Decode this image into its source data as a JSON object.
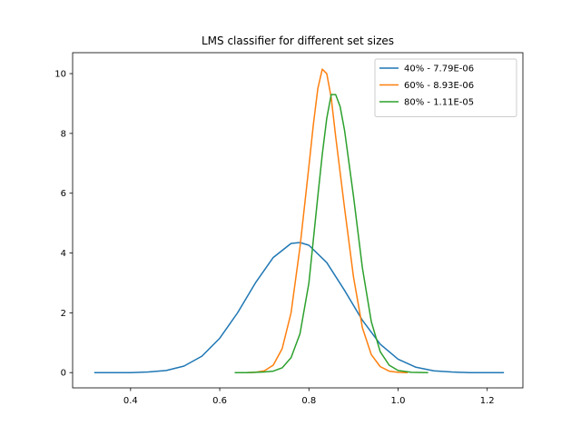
{
  "chart_data": {
    "type": "line",
    "title": "LMS classifier for different set sizes",
    "xlabel": "",
    "ylabel": "",
    "xlim": [
      0.27,
      1.28
    ],
    "ylim": [
      -0.51,
      10.7
    ],
    "xticks": [
      0.4,
      0.6,
      0.8,
      1.0,
      1.2
    ],
    "xtick_labels": [
      "0.4",
      "0.6",
      "0.8",
      "1.0",
      "1.2"
    ],
    "yticks": [
      0,
      2,
      4,
      6,
      8,
      10
    ],
    "ytick_labels": [
      "0",
      "2",
      "4",
      "6",
      "8",
      "10"
    ],
    "grid": false,
    "legend_position": "top-right",
    "series": [
      {
        "name": "40% - 7.79E-06",
        "color": "#1f77b4",
        "x": [
          0.32,
          0.36,
          0.4,
          0.44,
          0.48,
          0.52,
          0.56,
          0.6,
          0.64,
          0.68,
          0.72,
          0.76,
          0.78,
          0.8,
          0.84,
          0.88,
          0.92,
          0.96,
          1.0,
          1.04,
          1.08,
          1.12,
          1.16,
          1.2,
          1.236
        ],
        "y": [
          0.0,
          0.0,
          0.0,
          0.02,
          0.07,
          0.22,
          0.55,
          1.15,
          2.0,
          3.0,
          3.85,
          4.32,
          4.35,
          4.26,
          3.68,
          2.75,
          1.75,
          0.95,
          0.45,
          0.18,
          0.06,
          0.02,
          0.0,
          0.0,
          0.0
        ]
      },
      {
        "name": "60% - 8.93E-06",
        "color": "#ff7f0e",
        "x": [
          0.635,
          0.66,
          0.68,
          0.7,
          0.72,
          0.74,
          0.76,
          0.78,
          0.8,
          0.81,
          0.82,
          0.83,
          0.84,
          0.85,
          0.86,
          0.88,
          0.9,
          0.92,
          0.94,
          0.96,
          0.98,
          1.0,
          1.02
        ],
        "y": [
          0.0,
          0.0,
          0.01,
          0.06,
          0.25,
          0.8,
          2.0,
          4.2,
          6.9,
          8.3,
          9.5,
          10.15,
          10.0,
          9.2,
          7.9,
          5.5,
          3.2,
          1.5,
          0.6,
          0.2,
          0.05,
          0.01,
          0.0
        ]
      },
      {
        "name": "80% - 1.11E-05",
        "color": "#2ca02c",
        "x": [
          0.635,
          0.66,
          0.68,
          0.7,
          0.72,
          0.74,
          0.76,
          0.78,
          0.8,
          0.82,
          0.83,
          0.84,
          0.85,
          0.86,
          0.87,
          0.88,
          0.9,
          0.92,
          0.94,
          0.96,
          0.98,
          1.0,
          1.03,
          1.066
        ],
        "y": [
          0.0,
          0.0,
          0.01,
          0.02,
          0.05,
          0.16,
          0.5,
          1.3,
          3.0,
          5.9,
          7.3,
          8.5,
          9.3,
          9.3,
          8.9,
          8.1,
          5.9,
          3.5,
          1.7,
          0.7,
          0.25,
          0.07,
          0.01,
          0.0
        ]
      }
    ]
  }
}
